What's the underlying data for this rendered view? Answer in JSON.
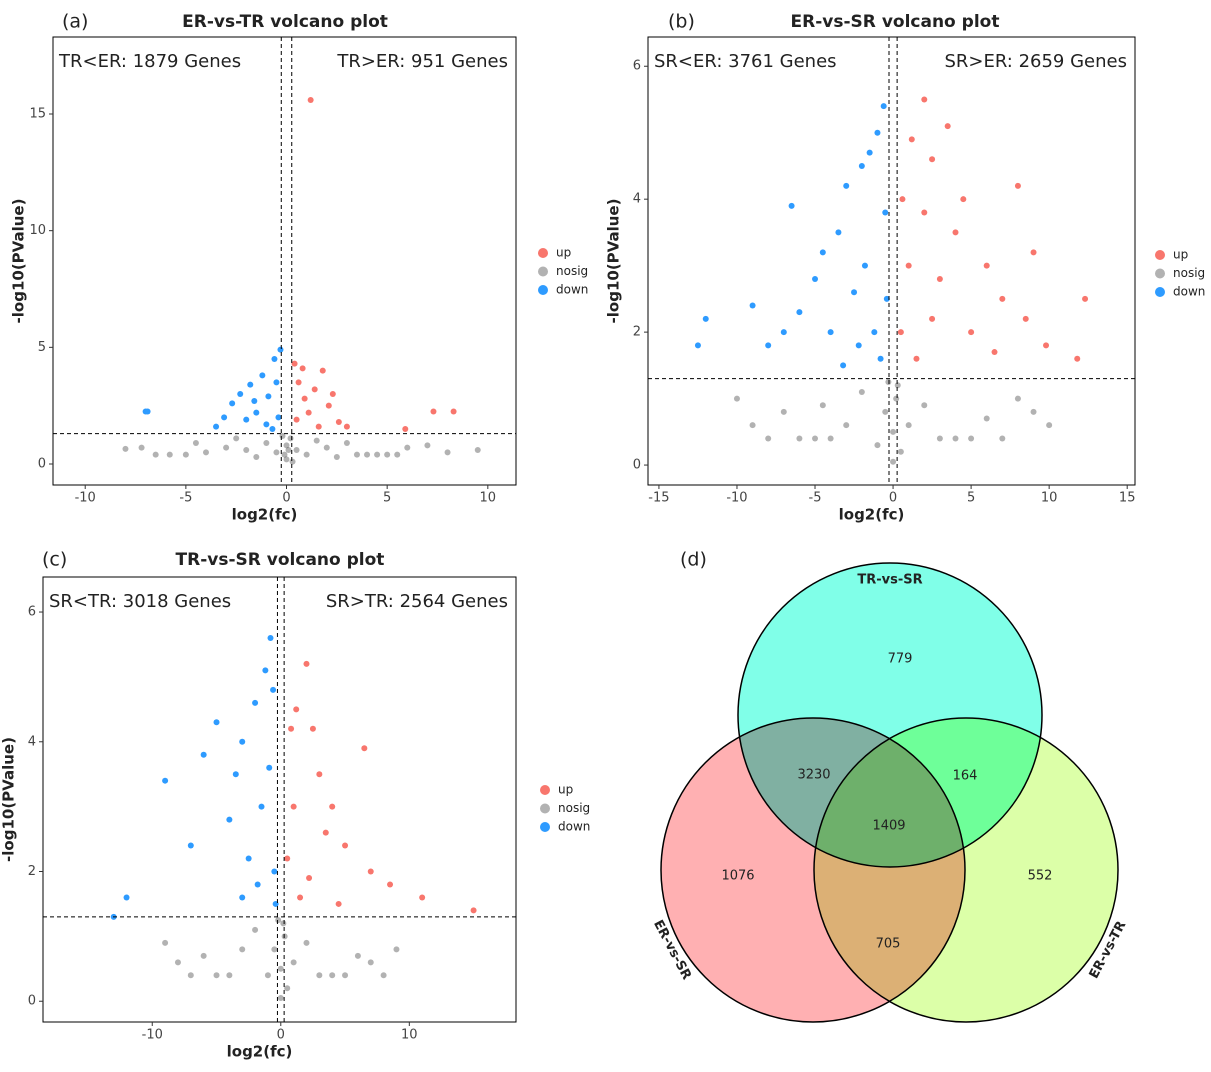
{
  "chart_data": [
    {
      "type": "scatter",
      "label": "(a)",
      "title": "ER-vs-TR volcano plot",
      "x_label": "log2(fc)",
      "y_label": "-log10(PValue)",
      "annotations": [
        "TR<ER: 1879 Genes",
        "TR>ER: 951 Genes"
      ],
      "xlim": [
        -11.6,
        11.4
      ],
      "ylim": [
        -0.9,
        18.3
      ],
      "xticks": [
        -10,
        -5,
        0,
        5,
        10
      ],
      "yticks": [
        0,
        5,
        10,
        15
      ],
      "vlines": [
        -0.26,
        0.26
      ],
      "hline": 1.3,
      "series": [
        {
          "name": "up",
          "color": "#f8766d",
          "opacity": 1,
          "x": [
            1.2,
            8.3,
            7.3,
            5.9,
            0.4,
            0.6,
            0.9,
            1.4,
            1.8,
            2.1,
            2.6,
            3.0,
            0.5,
            1.1,
            1.6,
            0.8,
            2.3
          ],
          "values": [
            15.6,
            2.25,
            2.25,
            1.5,
            4.3,
            3.5,
            2.8,
            3.2,
            4.0,
            2.5,
            1.8,
            1.6,
            1.9,
            2.2,
            1.6,
            4.1,
            3.0
          ]
        },
        {
          "name": "nosig",
          "color": "#000000",
          "opacity": 0.3,
          "x": [
            -8,
            -7.2,
            -6.5,
            -5.8,
            -5,
            -4.5,
            -4,
            -3,
            -2.5,
            -2,
            -1.5,
            -1,
            -0.5,
            0,
            0,
            0.3,
            0.5,
            1,
            1.5,
            2,
            2.5,
            3,
            3.5,
            4,
            4.5,
            5,
            5.5,
            6,
            7,
            8,
            9.5,
            -0.2,
            0.2,
            -0.1,
            0.1
          ],
          "values": [
            0.65,
            0.7,
            0.4,
            0.4,
            0.4,
            0.9,
            0.5,
            0.7,
            1.1,
            0.6,
            0.3,
            0.9,
            0.5,
            0.2,
            0.8,
            0.1,
            0.6,
            0.4,
            1.0,
            0.7,
            0.3,
            0.9,
            0.4,
            0.4,
            0.4,
            0.4,
            0.4,
            0.7,
            0.8,
            0.5,
            0.6,
            1.2,
            1.1,
            0.4,
            0.6
          ]
        },
        {
          "name": "down",
          "color": "#2e9bff",
          "opacity": 1,
          "x": [
            -7.0,
            -6.9,
            -3.5,
            -3.1,
            -2.7,
            -2.3,
            -1.8,
            -1.5,
            -1.2,
            -0.9,
            -0.6,
            -0.5,
            -0.4,
            -1.0,
            -2.0,
            -0.7,
            -0.3,
            -1.6
          ],
          "values": [
            2.25,
            2.25,
            1.6,
            2.0,
            2.6,
            3.0,
            3.4,
            2.2,
            3.8,
            2.9,
            4.5,
            3.5,
            2.0,
            1.7,
            1.9,
            1.5,
            4.9,
            2.7
          ]
        }
      ]
    },
    {
      "type": "scatter",
      "label": "(b)",
      "title": "ER-vs-SR volcano plot",
      "x_label": "log2(fc)",
      "y_label": "-log10(PValue)",
      "annotations": [
        "SR<ER: 3761 Genes",
        "SR>ER: 2659 Genes"
      ],
      "xlim": [
        -15.7,
        15.5
      ],
      "ylim": [
        -0.3,
        6.44
      ],
      "xticks": [
        -15,
        -10,
        -5,
        0,
        5,
        10,
        15
      ],
      "yticks": [
        0,
        2,
        4,
        6
      ],
      "vlines": [
        -0.26,
        0.26
      ],
      "hline": 1.3,
      "series": [
        {
          "name": "up",
          "color": "#f8766d",
          "opacity": 1,
          "x": [
            2,
            3.5,
            1.2,
            2.5,
            4.5,
            8,
            9,
            12.3,
            11.8,
            9.8,
            7,
            6,
            5,
            4,
            3,
            2,
            1,
            0.5,
            1.5,
            2.5,
            8.5,
            6.5,
            0.6
          ],
          "values": [
            5.5,
            5.1,
            4.9,
            4.6,
            4.0,
            4.2,
            3.2,
            2.5,
            1.6,
            1.8,
            2.5,
            3.0,
            2.0,
            3.5,
            2.8,
            3.8,
            3.0,
            2.0,
            1.6,
            2.2,
            2.2,
            1.7,
            4.0
          ]
        },
        {
          "name": "nosig",
          "color": "#000000",
          "opacity": 0.3,
          "x": [
            -10,
            -9,
            -8,
            -7,
            -6,
            -5,
            -4.5,
            -4,
            -3,
            -2,
            -1,
            -0.5,
            0,
            0,
            0.2,
            0.5,
            1,
            2,
            3,
            4,
            5,
            6,
            7,
            8,
            9,
            10,
            -0.3,
            0.3
          ],
          "values": [
            1.0,
            0.6,
            0.4,
            0.8,
            0.4,
            0.4,
            0.9,
            0.4,
            0.6,
            1.1,
            0.3,
            0.8,
            0.05,
            0.5,
            1.0,
            0.2,
            0.6,
            0.9,
            0.4,
            0.4,
            0.4,
            0.7,
            0.4,
            1.0,
            0.8,
            0.6,
            1.25,
            1.2
          ]
        },
        {
          "name": "down",
          "color": "#2e9bff",
          "opacity": 1,
          "x": [
            -12.5,
            -12,
            -9,
            -8,
            -7,
            -6.5,
            -6,
            -5,
            -4.5,
            -4,
            -3.5,
            -3,
            -2.5,
            -2,
            -1.8,
            -1.5,
            -1,
            -0.6,
            -0.5,
            -1.2,
            -0.8,
            -2.2,
            -3.2,
            -0.4
          ],
          "values": [
            1.8,
            2.2,
            2.4,
            1.8,
            2.0,
            3.9,
            2.3,
            2.8,
            3.2,
            2.0,
            3.5,
            4.2,
            2.6,
            4.5,
            3.0,
            4.7,
            5.0,
            5.4,
            3.8,
            2.0,
            1.6,
            1.8,
            1.5,
            2.5
          ]
        }
      ]
    },
    {
      "type": "scatter",
      "label": "(c)",
      "title": "TR-vs-SR volcano plot",
      "x_label": "log2(fc)",
      "y_label": "-log10(PValue)",
      "annotations": [
        "SR<TR: 3018 Genes",
        "SR>TR: 2564 Genes"
      ],
      "xlim": [
        -18.5,
        18.3
      ],
      "ylim": [
        -0.32,
        6.54
      ],
      "xticks": [
        -10,
        0,
        10
      ],
      "yticks": [
        0,
        2,
        4,
        6
      ],
      "vlines": [
        -0.26,
        0.26
      ],
      "hline": 1.3,
      "series": [
        {
          "name": "up",
          "color": "#f8766d",
          "opacity": 1,
          "x": [
            2,
            1.2,
            2.5,
            3,
            6.5,
            4,
            5,
            11,
            15,
            8.5,
            7,
            3.5,
            1,
            0.5,
            1.5,
            2.2,
            0.8,
            4.5
          ],
          "values": [
            5.2,
            4.5,
            4.2,
            3.5,
            3.9,
            3.0,
            2.4,
            1.6,
            1.4,
            1.8,
            2.0,
            2.6,
            3.0,
            2.2,
            1.6,
            1.9,
            4.2,
            1.5
          ]
        },
        {
          "name": "nosig",
          "color": "#000000",
          "opacity": 0.3,
          "x": [
            -9,
            -8,
            -7,
            -6,
            -5,
            -4,
            -3,
            -2,
            -1,
            -0.5,
            0,
            0,
            0.3,
            0.5,
            1,
            2,
            3,
            4,
            5,
            6,
            7,
            8,
            -0.2,
            0.2,
            9
          ],
          "values": [
            0.9,
            0.6,
            0.4,
            0.7,
            0.4,
            0.4,
            0.8,
            1.1,
            0.4,
            0.8,
            0.05,
            0.5,
            1.0,
            0.2,
            0.6,
            0.9,
            0.4,
            0.4,
            0.4,
            0.7,
            0.6,
            0.4,
            1.25,
            1.2,
            0.8
          ]
        },
        {
          "name": "down",
          "color": "#2e9bff",
          "opacity": 1,
          "x": [
            -12,
            -13,
            -9,
            -7,
            -6,
            -5,
            -4,
            -3.5,
            -3,
            -2.5,
            -2,
            -1.5,
            -1.2,
            -0.8,
            -0.6,
            -0.5,
            -1.8,
            -3,
            -0.9,
            -0.4
          ],
          "values": [
            1.6,
            1.3,
            3.4,
            2.4,
            3.8,
            4.3,
            2.8,
            3.5,
            4.0,
            2.2,
            4.6,
            3.0,
            5.1,
            5.6,
            4.8,
            2.0,
            1.8,
            1.6,
            3.6,
            1.5
          ]
        }
      ]
    },
    {
      "type": "venn",
      "label": "(d)",
      "sets": [
        {
          "name": "TR-vs-SR",
          "color": "#80ffe8"
        },
        {
          "name": "ER-vs-SR",
          "color": "#ffb0b2"
        },
        {
          "name": "ER-vs-TR",
          "color": "#dcffa8"
        }
      ],
      "regions": [
        {
          "sets": [
            "TR-vs-SR"
          ],
          "value": 779
        },
        {
          "sets": [
            "TR-vs-SR",
            "ER-vs-SR"
          ],
          "value": 3230
        },
        {
          "sets": [
            "TR-vs-SR",
            "ER-vs-TR"
          ],
          "value": 164
        },
        {
          "sets": [
            "TR-vs-SR",
            "ER-vs-SR",
            "ER-vs-TR"
          ],
          "value": 1409
        },
        {
          "sets": [
            "ER-vs-SR"
          ],
          "value": 1076
        },
        {
          "sets": [
            "ER-vs-TR"
          ],
          "value": 552
        },
        {
          "sets": [
            "ER-vs-SR",
            "ER-vs-TR"
          ],
          "value": 705
        }
      ]
    }
  ]
}
